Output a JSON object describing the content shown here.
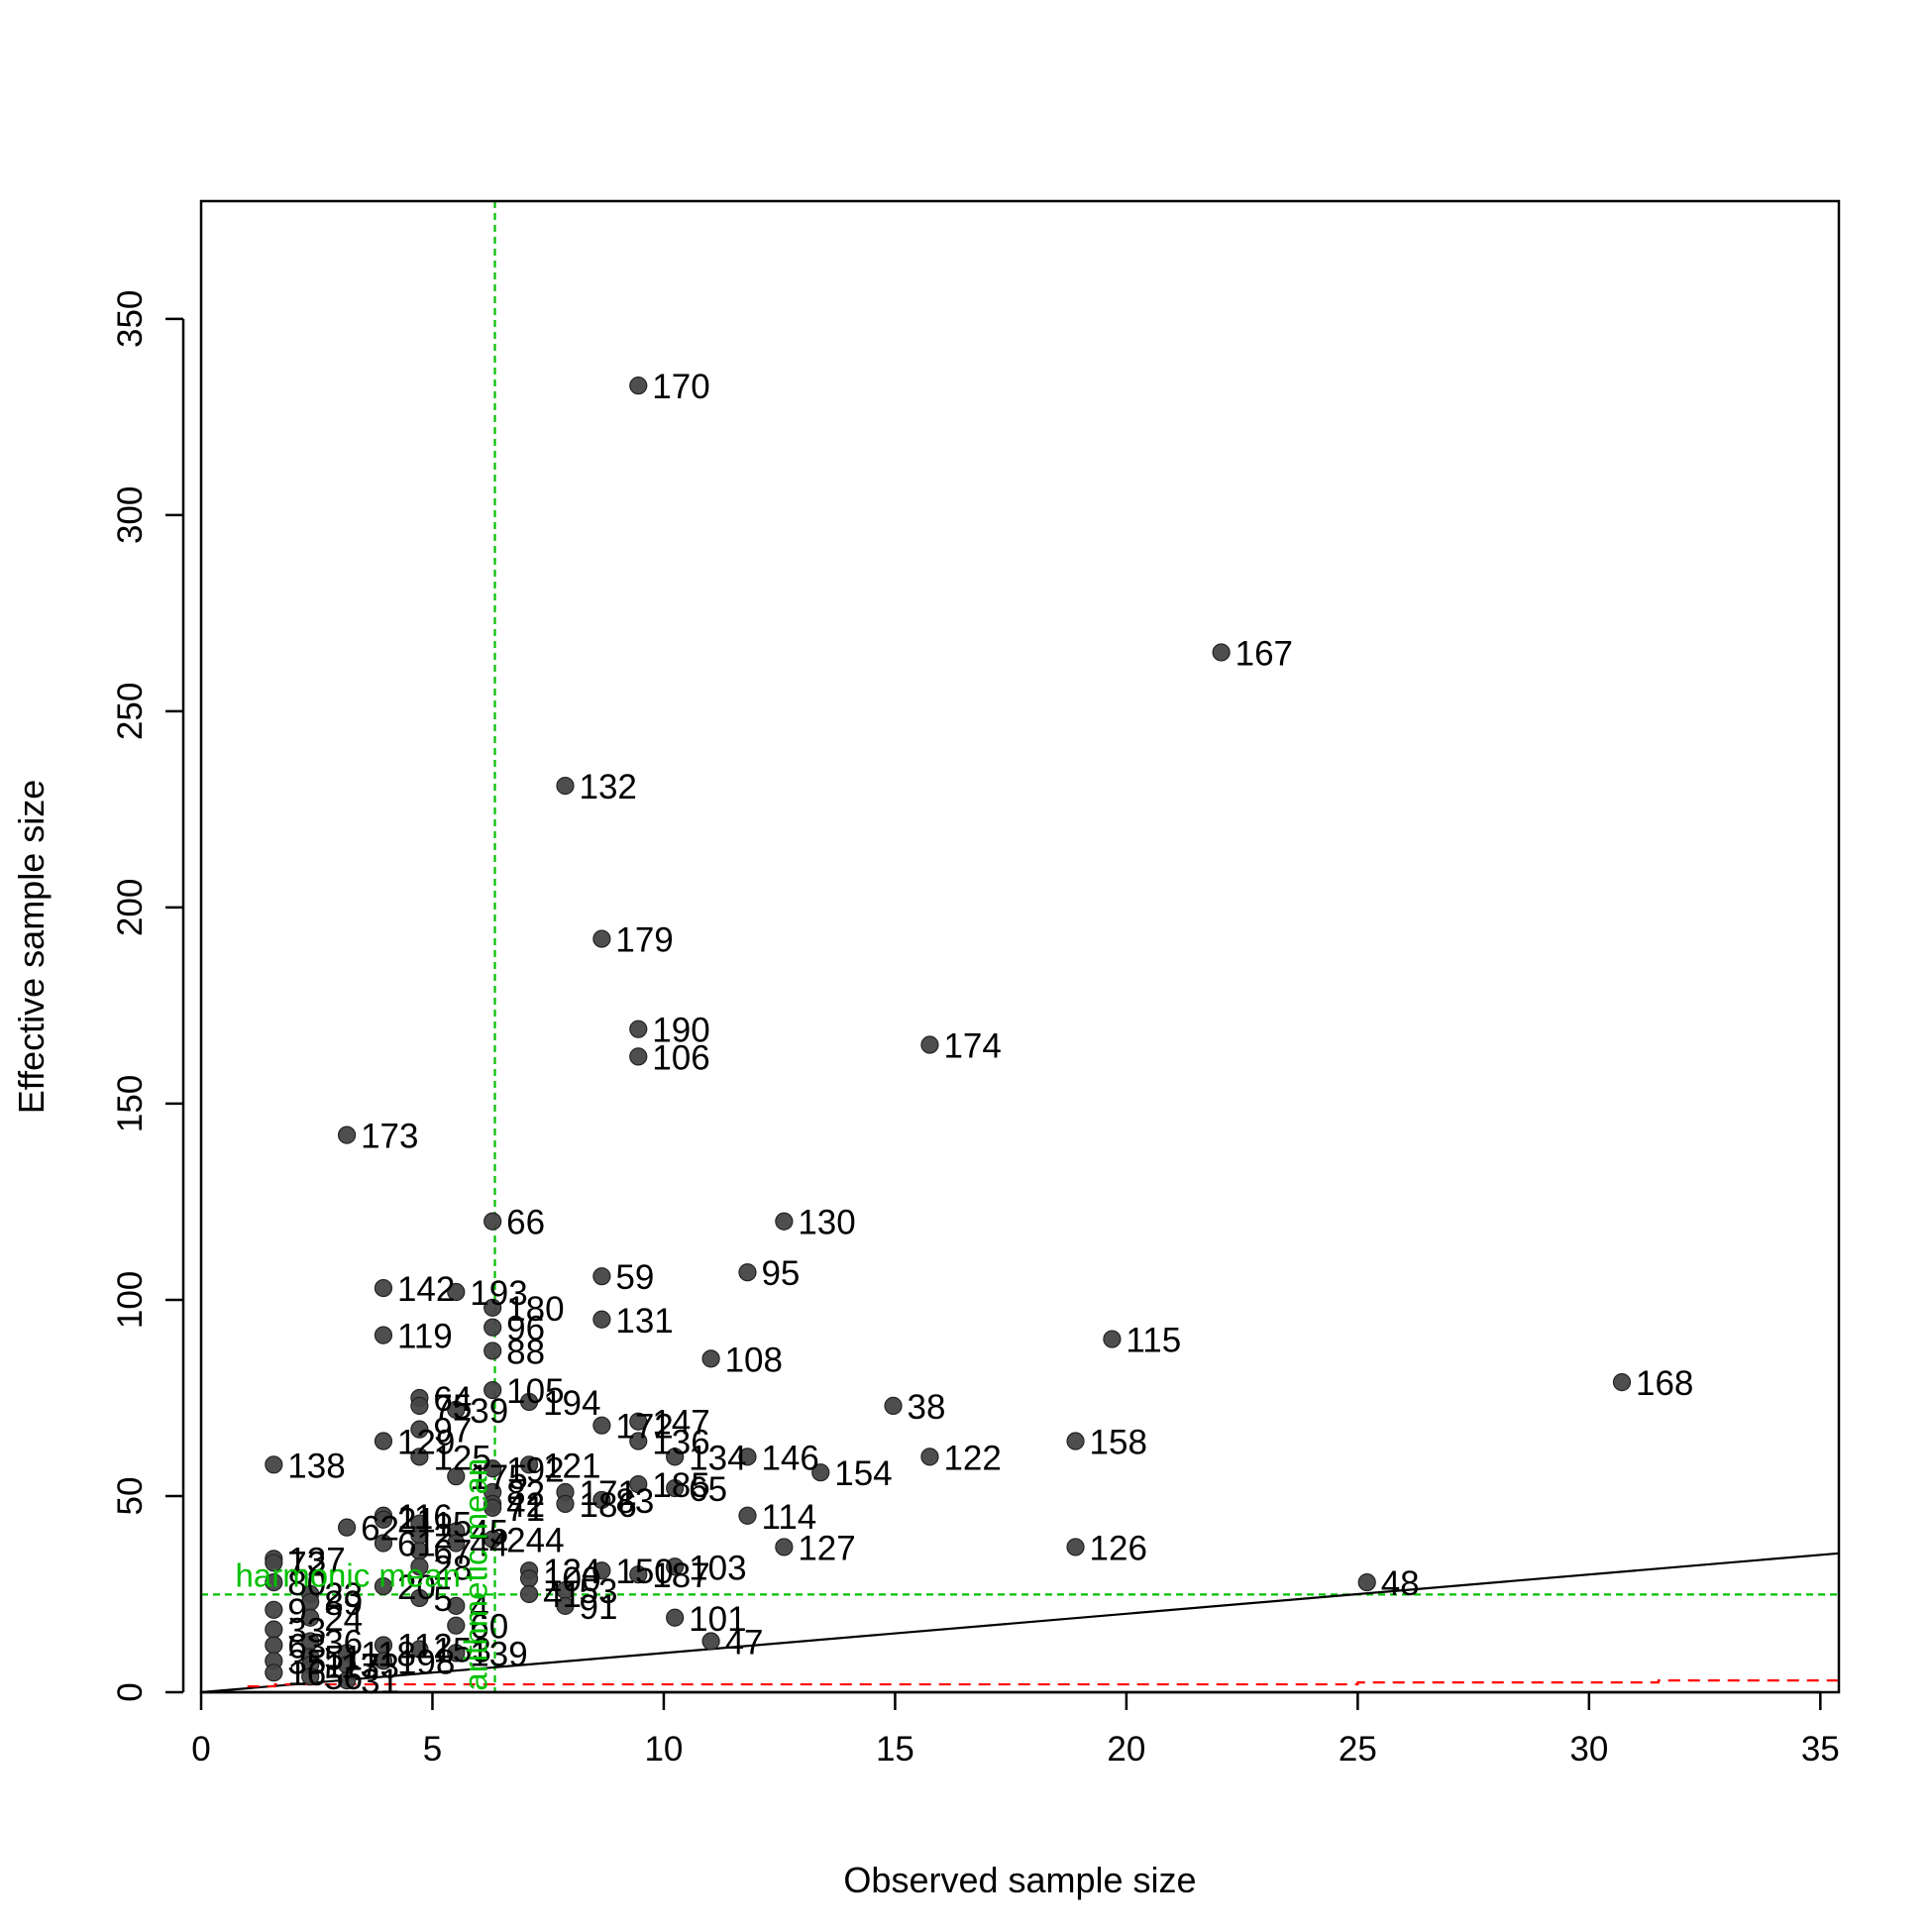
{
  "chart_data": {
    "type": "scatter",
    "title": "",
    "xlabel": "Observed sample size",
    "ylabel": "Effective sample size",
    "xlim": [
      0,
      35.4
    ],
    "ylim": [
      0,
      380
    ],
    "xticks": [
      0,
      5,
      10,
      15,
      20,
      25,
      30,
      35
    ],
    "yticks": [
      0,
      50,
      100,
      150,
      200,
      250,
      300,
      350
    ],
    "grid": false,
    "legend": "none",
    "colors": {
      "points": "#444444",
      "identity_line": "#000000",
      "reference_lines": "#00c000",
      "reference_labels": "#00c000",
      "lower_bound_line": "#ff0000"
    },
    "reference_lines": {
      "arithmetic_mean_x": 6.35,
      "harmonic_mean_y": 24.9,
      "arithmetic_label": "arithmetic mean",
      "harmonic_label": "harmonic mean"
    },
    "identity_line": {
      "x": [
        0,
        35.4
      ],
      "y": [
        0,
        35.4
      ]
    },
    "lower_bound_line": {
      "x": [
        1,
        1.6,
        1.6,
        2.5,
        2.5,
        25,
        25,
        31.5,
        31.5,
        35.4
      ],
      "y": [
        1.5,
        1.5,
        2,
        2,
        2,
        2,
        2.5,
        2.5,
        3,
        3
      ]
    },
    "points": [
      {
        "label": "170",
        "x": 9.45,
        "y": 333
      },
      {
        "label": "167",
        "x": 22.05,
        "y": 265
      },
      {
        "label": "132",
        "x": 7.87,
        "y": 231
      },
      {
        "label": "179",
        "x": 8.66,
        "y": 192
      },
      {
        "label": "190",
        "x": 9.45,
        "y": 169
      },
      {
        "label": "106",
        "x": 9.45,
        "y": 162
      },
      {
        "label": "174",
        "x": 15.75,
        "y": 165
      },
      {
        "label": "173",
        "x": 3.15,
        "y": 142
      },
      {
        "label": "66",
        "x": 6.3,
        "y": 120
      },
      {
        "label": "130",
        "x": 12.6,
        "y": 120
      },
      {
        "label": "59",
        "x": 8.66,
        "y": 106
      },
      {
        "label": "95",
        "x": 11.81,
        "y": 107
      },
      {
        "label": "142",
        "x": 3.94,
        "y": 103
      },
      {
        "label": "193",
        "x": 5.51,
        "y": 102
      },
      {
        "label": "180",
        "x": 6.3,
        "y": 98
      },
      {
        "label": "131",
        "x": 8.66,
        "y": 95
      },
      {
        "label": "96",
        "x": 6.3,
        "y": 93
      },
      {
        "label": "119",
        "x": 3.94,
        "y": 91
      },
      {
        "label": "115",
        "x": 19.69,
        "y": 90
      },
      {
        "label": "88",
        "x": 6.3,
        "y": 87
      },
      {
        "label": "108",
        "x": 11.02,
        "y": 85
      },
      {
        "label": "168",
        "x": 30.71,
        "y": 79
      },
      {
        "label": "105",
        "x": 6.3,
        "y": 77
      },
      {
        "label": "64",
        "x": 4.72,
        "y": 75
      },
      {
        "label": "75",
        "x": 4.72,
        "y": 73
      },
      {
        "label": "39",
        "x": 5.51,
        "y": 72
      },
      {
        "label": "194",
        "x": 7.09,
        "y": 74
      },
      {
        "label": "38",
        "x": 14.96,
        "y": 73
      },
      {
        "label": "147",
        "x": 9.45,
        "y": 69
      },
      {
        "label": "172",
        "x": 8.66,
        "y": 68
      },
      {
        "label": "97",
        "x": 4.72,
        "y": 67
      },
      {
        "label": "129",
        "x": 3.94,
        "y": 64
      },
      {
        "label": "136",
        "x": 9.45,
        "y": 64
      },
      {
        "label": "158",
        "x": 18.9,
        "y": 64
      },
      {
        "label": "146",
        "x": 11.81,
        "y": 60
      },
      {
        "label": "134",
        "x": 10.24,
        "y": 60
      },
      {
        "label": "122",
        "x": 15.75,
        "y": 60
      },
      {
        "label": "125",
        "x": 4.72,
        "y": 60
      },
      {
        "label": "138",
        "x": 1.57,
        "y": 58
      },
      {
        "label": "121",
        "x": 7.09,
        "y": 58
      },
      {
        "label": "154",
        "x": 13.39,
        "y": 56
      },
      {
        "label": "192",
        "x": 6.3,
        "y": 57
      },
      {
        "label": "175",
        "x": 5.51,
        "y": 55
      },
      {
        "label": "185",
        "x": 9.45,
        "y": 53
      },
      {
        "label": "65",
        "x": 10.24,
        "y": 52
      },
      {
        "label": "171",
        "x": 7.87,
        "y": 51
      },
      {
        "label": "82",
        "x": 6.3,
        "y": 51
      },
      {
        "label": "83",
        "x": 8.66,
        "y": 49
      },
      {
        "label": "186",
        "x": 7.87,
        "y": 48
      },
      {
        "label": "42",
        "x": 6.3,
        "y": 48
      },
      {
        "label": "71",
        "x": 6.3,
        "y": 47
      },
      {
        "label": "116",
        "x": 3.94,
        "y": 45
      },
      {
        "label": "114",
        "x": 11.81,
        "y": 45
      },
      {
        "label": "21",
        "x": 3.94,
        "y": 44
      },
      {
        "label": "15",
        "x": 4.72,
        "y": 43
      },
      {
        "label": "62",
        "x": 3.15,
        "y": 42
      },
      {
        "label": "45",
        "x": 5.51,
        "y": 41
      },
      {
        "label": "2",
        "x": 4.72,
        "y": 40
      },
      {
        "label": "244",
        "x": 6.3,
        "y": 39
      },
      {
        "label": "61",
        "x": 3.94,
        "y": 38
      },
      {
        "label": "44",
        "x": 5.51,
        "y": 38
      },
      {
        "label": "126",
        "x": 18.9,
        "y": 37
      },
      {
        "label": "127",
        "x": 12.6,
        "y": 37
      },
      {
        "label": "67",
        "x": 4.72,
        "y": 36
      },
      {
        "label": "137",
        "x": 1.57,
        "y": 34
      },
      {
        "label": "72",
        "x": 1.57,
        "y": 33
      },
      {
        "label": "103",
        "x": 10.24,
        "y": 32
      },
      {
        "label": "28",
        "x": 4.72,
        "y": 32
      },
      {
        "label": "124",
        "x": 7.09,
        "y": 31
      },
      {
        "label": "150",
        "x": 8.66,
        "y": 31
      },
      {
        "label": "187",
        "x": 9.45,
        "y": 30
      },
      {
        "label": "100",
        "x": 7.09,
        "y": 29
      },
      {
        "label": "48",
        "x": 25.2,
        "y": 28
      },
      {
        "label": "80",
        "x": 1.57,
        "y": 28
      },
      {
        "label": "20",
        "x": 3.94,
        "y": 27
      },
      {
        "label": "53",
        "x": 7.87,
        "y": 26
      },
      {
        "label": "41",
        "x": 7.09,
        "y": 25
      },
      {
        "label": "23",
        "x": 2.36,
        "y": 25
      },
      {
        "label": "5",
        "x": 4.72,
        "y": 24
      },
      {
        "label": "89",
        "x": 2.36,
        "y": 23
      },
      {
        "label": "91",
        "x": 7.87,
        "y": 22
      },
      {
        "label": "4",
        "x": 5.51,
        "y": 22
      },
      {
        "label": "9",
        "x": 1.57,
        "y": 21
      },
      {
        "label": "101",
        "x": 10.24,
        "y": 19
      },
      {
        "label": "24",
        "x": 2.36,
        "y": 19
      },
      {
        "label": "60",
        "x": 5.51,
        "y": 17
      },
      {
        "label": "33",
        "x": 1.57,
        "y": 16
      },
      {
        "label": "47",
        "x": 11.02,
        "y": 13
      },
      {
        "label": "36",
        "x": 2.36,
        "y": 13
      },
      {
        "label": "63",
        "x": 1.57,
        "y": 12
      },
      {
        "label": "112",
        "x": 3.94,
        "y": 12
      },
      {
        "label": "153",
        "x": 4.72,
        "y": 11
      },
      {
        "label": "139",
        "x": 5.51,
        "y": 10
      },
      {
        "label": "118",
        "x": 3.15,
        "y": 10
      },
      {
        "label": "51",
        "x": 2.36,
        "y": 9
      },
      {
        "label": "35",
        "x": 1.57,
        "y": 8
      },
      {
        "label": "198",
        "x": 3.94,
        "y": 8
      },
      {
        "label": "113",
        "x": 2.36,
        "y": 7
      },
      {
        "label": "73",
        "x": 3.15,
        "y": 7
      },
      {
        "label": "16",
        "x": 1.57,
        "y": 5
      },
      {
        "label": "56",
        "x": 2.36,
        "y": 4
      },
      {
        "label": "31",
        "x": 3.15,
        "y": 3
      }
    ]
  }
}
